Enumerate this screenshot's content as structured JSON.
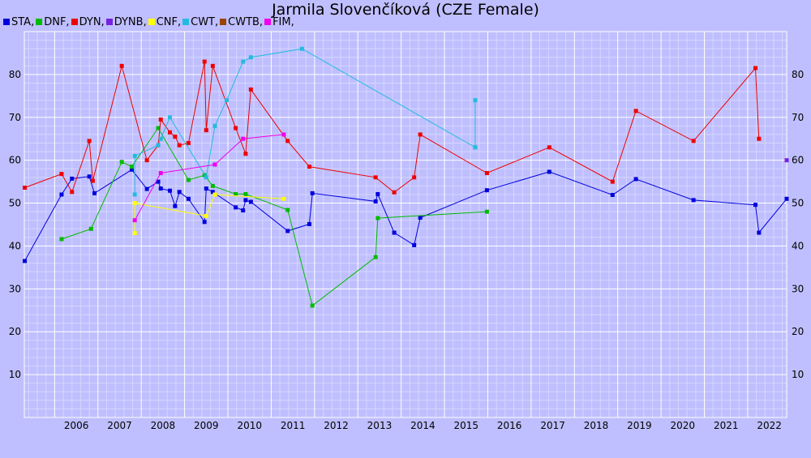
{
  "chart_data": {
    "type": "line",
    "title": "Jarmila Slovenčíková (CZE Female)",
    "xlabel": "",
    "ylabel": "",
    "xlim": [
      2005.3,
      2022.9
    ],
    "ylim": [
      0,
      90
    ],
    "x_ticks": [
      "2006",
      "2007",
      "2008",
      "2009",
      "2010",
      "2011",
      "2012",
      "2013",
      "2014",
      "2015",
      "2016",
      "2017",
      "2018",
      "2019",
      "2020",
      "2021",
      "2022"
    ],
    "y_ticks": [
      "10",
      "20",
      "30",
      "40",
      "50",
      "60",
      "70",
      "80"
    ],
    "grid": true,
    "legend_position": "top-left",
    "series": [
      {
        "name": "STA",
        "color": "#0000dd",
        "points": [
          [
            2005.31,
            36.5
          ],
          [
            2006.16,
            52.0
          ],
          [
            2006.4,
            55.7
          ],
          [
            2006.8,
            56.2
          ],
          [
            2006.92,
            52.3
          ],
          [
            2007.78,
            57.8
          ],
          [
            2008.13,
            53.3
          ],
          [
            2008.39,
            55.0
          ],
          [
            2008.45,
            53.4
          ],
          [
            2008.66,
            52.9
          ],
          [
            2008.78,
            49.3
          ],
          [
            2008.88,
            52.6
          ],
          [
            2009.09,
            51.0
          ],
          [
            2009.46,
            45.6
          ],
          [
            2009.5,
            53.4
          ],
          [
            2009.65,
            52.6
          ],
          [
            2010.18,
            49.0
          ],
          [
            2010.35,
            48.3
          ],
          [
            2010.41,
            50.7
          ],
          [
            2010.53,
            50.3
          ],
          [
            2011.38,
            43.5
          ],
          [
            2011.88,
            45.1
          ],
          [
            2011.95,
            52.3
          ],
          [
            2013.41,
            50.4
          ],
          [
            2013.46,
            52.1
          ],
          [
            2013.84,
            43.1
          ],
          [
            2014.3,
            40.2
          ],
          [
            2014.44,
            46.6
          ],
          [
            2015.98,
            53.0
          ],
          [
            2017.42,
            57.3
          ],
          [
            2018.88,
            51.9
          ],
          [
            2019.42,
            55.6
          ],
          [
            2020.75,
            50.7
          ],
          [
            2022.18,
            49.6
          ],
          [
            2022.26,
            43.1
          ],
          [
            2022.9,
            51.0
          ]
        ]
      },
      {
        "name": "DNF",
        "color": "#00bb00",
        "points": [
          [
            2006.16,
            41.6
          ],
          [
            2006.84,
            44.0
          ],
          [
            2007.55,
            59.6
          ],
          [
            2007.78,
            58.5
          ],
          [
            2008.39,
            67.5
          ],
          [
            2009.09,
            55.4
          ],
          [
            2009.46,
            56.5
          ],
          [
            2009.65,
            54.0
          ],
          [
            2010.18,
            52.1
          ],
          [
            2010.41,
            52.1
          ],
          [
            2011.38,
            48.4
          ],
          [
            2011.95,
            26.1
          ],
          [
            2013.41,
            37.4
          ],
          [
            2013.46,
            46.5
          ],
          [
            2015.98,
            48.0
          ]
        ]
      },
      {
        "name": "DYN",
        "color": "#ee0000",
        "points": [
          [
            2005.31,
            53.6
          ],
          [
            2006.16,
            56.8
          ],
          [
            2006.4,
            52.6
          ],
          [
            2006.8,
            64.5
          ],
          [
            2006.88,
            55.2
          ],
          [
            2007.55,
            82.0
          ],
          [
            2008.13,
            60.0
          ],
          [
            2008.39,
            63.5
          ],
          [
            2008.45,
            69.5
          ],
          [
            2008.66,
            66.5
          ],
          [
            2008.78,
            65.5
          ],
          [
            2008.88,
            63.5
          ],
          [
            2009.09,
            64.0
          ],
          [
            2009.46,
            83.0
          ],
          [
            2009.5,
            67.0
          ],
          [
            2009.65,
            82.0
          ],
          [
            2010.18,
            67.5
          ],
          [
            2010.41,
            61.5
          ],
          [
            2010.53,
            76.5
          ],
          [
            2011.38,
            64.5
          ],
          [
            2011.88,
            58.5
          ],
          [
            2013.41,
            56.0
          ],
          [
            2013.84,
            52.5
          ],
          [
            2014.3,
            56.0
          ],
          [
            2014.44,
            66.0
          ],
          [
            2015.98,
            57.0
          ],
          [
            2017.42,
            63.0
          ],
          [
            2018.88,
            55.0
          ],
          [
            2019.42,
            71.5
          ],
          [
            2020.75,
            64.5
          ],
          [
            2022.18,
            81.5
          ],
          [
            2022.26,
            65.0
          ]
        ]
      },
      {
        "name": "DYNB",
        "color": "#7722dd",
        "points": [
          [
            2022.9,
            60.0
          ]
        ]
      },
      {
        "name": "CNF",
        "color": "#ffff00",
        "points": [
          [
            2007.85,
            43.0
          ],
          [
            2007.85,
            50.0
          ],
          [
            2009.5,
            47.0
          ],
          [
            2009.7,
            52.0
          ],
          [
            2011.29,
            51.0
          ]
        ]
      },
      {
        "name": "CWT",
        "color": "#22bbdd",
        "points": [
          [
            2007.85,
            52.0
          ],
          [
            2007.85,
            61.0
          ],
          [
            2008.39,
            63.5
          ],
          [
            2008.45,
            65.0
          ],
          [
            2008.66,
            70.0
          ],
          [
            2009.5,
            56.0
          ],
          [
            2009.7,
            68.0
          ],
          [
            2009.97,
            74.0
          ],
          [
            2010.35,
            83.0
          ],
          [
            2010.53,
            84.0
          ],
          [
            2011.71,
            86.0
          ],
          [
            2015.71,
            63.0
          ],
          [
            2015.71,
            74.0
          ]
        ]
      },
      {
        "name": "CWTB",
        "color": "#994400",
        "points": []
      },
      {
        "name": "FIM",
        "color": "#ee00ee",
        "points": [
          [
            2007.85,
            46.0
          ],
          [
            2008.45,
            57.0
          ],
          [
            2009.7,
            59.0
          ],
          [
            2010.35,
            65.0
          ],
          [
            2011.29,
            66.0
          ]
        ]
      }
    ]
  }
}
